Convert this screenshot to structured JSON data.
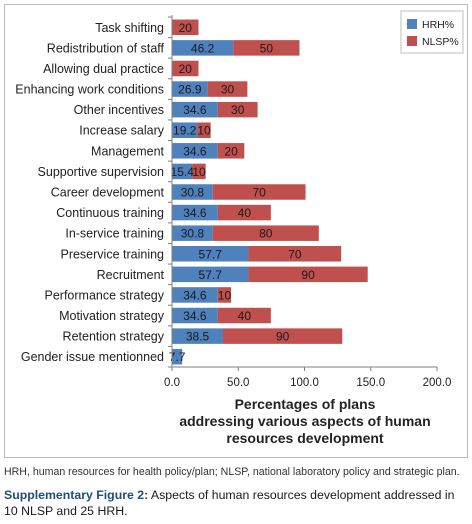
{
  "chart_data": {
    "type": "bar",
    "orientation": "horizontal",
    "stacked": true,
    "categories": [
      "Task shifting",
      "Redistribution of staff",
      "Allowing dual practice",
      "Enhancing work conditions",
      "Other incentives",
      "Increase salary",
      "Management",
      "Supportive supervision",
      "Career development",
      "Continuous training",
      "In-service training",
      "Preservice training",
      "Recruitment",
      "Performance strategy",
      "Motivation strategy",
      "Retention strategy",
      "Gender issue mentionned"
    ],
    "series": [
      {
        "name": "HRH%",
        "color": "#4f81bd",
        "values": [
          null,
          46.2,
          null,
          26.9,
          34.6,
          19.2,
          34.6,
          15.4,
          30.8,
          34.6,
          30.8,
          57.7,
          57.7,
          34.6,
          34.6,
          38.5,
          7.7
        ],
        "labels": [
          "",
          "46.2",
          "",
          "26.9",
          "34.6",
          "19.2",
          "34.6",
          "15.4",
          "30.8",
          "34.6",
          "30.8",
          "57.7",
          "57.7",
          "34.6",
          "34.6",
          "38.5",
          "7.7"
        ]
      },
      {
        "name": "NLSP%",
        "color": "#c0504d",
        "values": [
          20,
          50,
          20,
          30,
          30,
          10,
          20,
          10,
          70,
          40,
          80,
          70,
          90,
          10,
          40,
          90,
          null
        ],
        "labels": [
          "20",
          "50",
          "20",
          "30",
          "30",
          "10",
          "20",
          "10",
          "70",
          "40",
          "80",
          "70",
          "90",
          "10",
          "40",
          "90",
          ""
        ]
      }
    ],
    "xlim": [
      0,
      200
    ],
    "xticks": [
      "0.0",
      "50.0",
      "100.0",
      "150.0",
      "200.0"
    ],
    "xlabel": [
      "Percentages of plans",
      "addressing various aspects of human",
      "resources development"
    ],
    "ylabel": "",
    "legend_position": "top-right",
    "grid": false
  },
  "footnote": "HRH, human resources for health policy/plan; NLSP, national laboratory policy and strategic plan.",
  "caption": {
    "label": "Supplementary Figure 2:",
    "text": " Aspects of human resources development addressed in 10 NLSP and 25 HRH."
  }
}
